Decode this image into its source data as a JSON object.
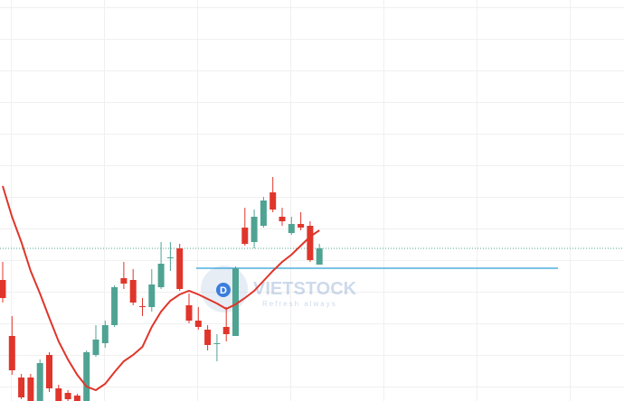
{
  "chart_data": {
    "type": "candlestick",
    "watermark": "VIETSTOCK",
    "watermark_subtitle": "Refresh always",
    "badge": "D",
    "ylim": [
      0,
      444
    ],
    "up_color": "#4fa393",
    "down_color": "#e0352b",
    "open": [
      134,
      72,
      26,
      26,
      0,
      51,
      14,
      9,
      6,
      0,
      51,
      64,
      84,
      136,
      134,
      105,
      104,
      126,
      158,
      169,
      106,
      89,
      79,
      63,
      82,
      72,
      192,
      176,
      194,
      231,
      204,
      186,
      196,
      194,
      151
    ],
    "high": [
      154,
      94,
      30,
      30,
      46,
      54,
      18,
      12,
      8,
      56,
      84,
      89,
      128,
      154,
      146,
      114,
      146,
      176,
      176,
      174,
      119,
      104,
      84,
      74,
      104,
      149,
      214,
      212,
      226,
      248,
      214,
      204,
      209,
      199,
      174
    ],
    "low": [
      109,
      29,
      2,
      0,
      0,
      10,
      0,
      0,
      0,
      0,
      49,
      59,
      82,
      124,
      106,
      94,
      99,
      124,
      144,
      122,
      86,
      79,
      56,
      44,
      66,
      72,
      172,
      169,
      192,
      209,
      194,
      184,
      189,
      154,
      151
    ],
    "close": [
      114,
      34,
      4,
      0,
      42,
      14,
      0,
      2,
      0,
      54,
      68,
      84,
      126,
      130,
      109,
      104,
      129,
      152,
      159,
      124,
      89,
      82,
      62,
      64,
      74,
      147,
      174,
      204,
      222,
      212,
      199,
      196,
      192,
      156,
      169
    ],
    "series": [
      {
        "color": "#e0352b",
        "values": [
          238,
          204,
          176,
          144,
          119,
          92,
          66,
          46,
          29,
          16,
          12,
          19,
          32,
          44,
          51,
          60,
          82,
          99,
          111,
          118,
          122,
          118,
          113,
          108,
          102,
          107,
          114,
          122,
          133,
          144,
          154,
          162,
          172,
          182,
          189
        ]
      }
    ],
    "reference_lines": [
      {
        "value": 169,
        "color": "#4fa393",
        "style": "dotted"
      },
      {
        "value": 147,
        "color": "#2a9fd6",
        "style": "solid"
      }
    ]
  }
}
